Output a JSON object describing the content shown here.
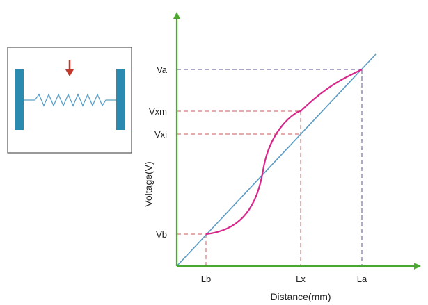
{
  "colors": {
    "axis": "#4aa832",
    "diagonal": "#5b9bc4",
    "curve": "#d8278a",
    "guide_red": "#d47a7a",
    "guide_purple": "#7b6fa8",
    "plate": "#2a8ab0",
    "spring": "#5aa0c8",
    "arrow": "#c0392b"
  },
  "axes": {
    "xlabel": "Distance(mm)",
    "ylabel": "Voltage(V)",
    "x_ticks": [
      "Lb",
      "Lx",
      "La"
    ],
    "y_ticks": [
      "Va",
      "Vxm",
      "Vxi",
      "Vb"
    ]
  },
  "inset": {
    "icons": [
      "left-plate-icon",
      "spring-icon",
      "right-plate-icon",
      "pressure-arrow-icon"
    ]
  }
}
